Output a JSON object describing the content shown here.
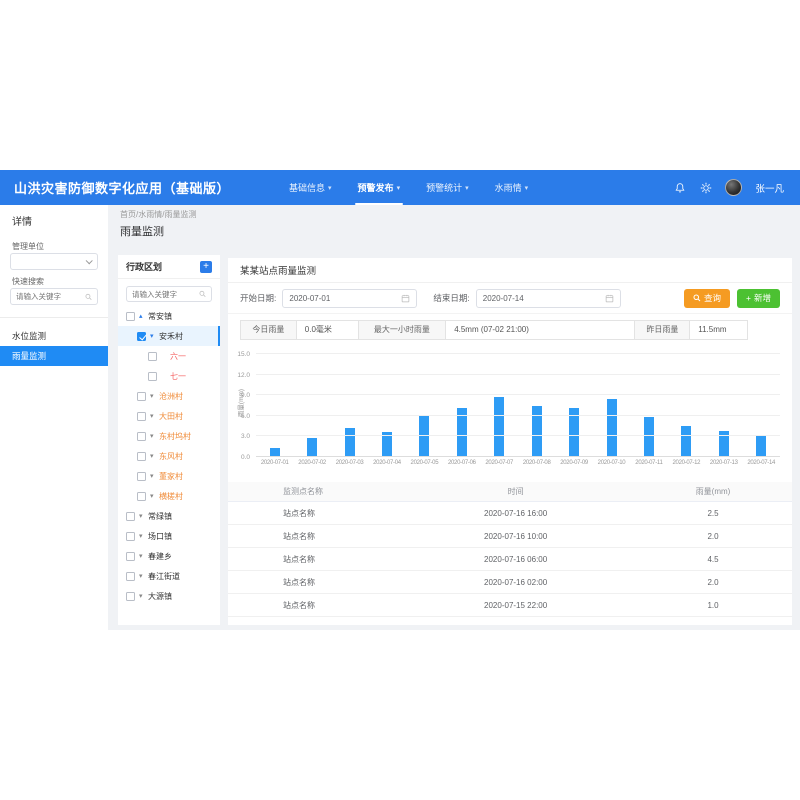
{
  "header": {
    "app_title": "山洪灾害防御数字化应用（基础版）",
    "nav": [
      {
        "label": "基础信息",
        "active": false
      },
      {
        "label": "预警发布",
        "active": true
      },
      {
        "label": "预警统计",
        "active": false
      },
      {
        "label": "水雨情",
        "active": false
      }
    ],
    "user_name": "张一凡"
  },
  "breadcrumb": "首页/水雨情/雨量监测",
  "page_title": "雨量监测",
  "sidebar": {
    "title": "详情",
    "manage_unit_label": "管理单位",
    "quick_search_label": "快速搜索",
    "search_placeholder": "请输入关键字",
    "items": [
      {
        "label": "水位监测",
        "active": false
      },
      {
        "label": "雨量监测",
        "active": true
      }
    ]
  },
  "tree": {
    "title": "行政区划",
    "search_placeholder": "请输入关键字",
    "nodes": [
      {
        "label": "常安镇",
        "level": 0,
        "checked": false,
        "selected": false,
        "caret": "up",
        "color": "default"
      },
      {
        "label": "安禾村",
        "level": 1,
        "checked": true,
        "selected": true,
        "caret": "down",
        "color": "default"
      },
      {
        "label": "六一",
        "level": 2,
        "checked": false,
        "selected": false,
        "caret": "none",
        "color": "red"
      },
      {
        "label": "七一",
        "level": 2,
        "checked": false,
        "selected": false,
        "caret": "none",
        "color": "red"
      },
      {
        "label": "沧洲村",
        "level": 1,
        "checked": false,
        "selected": false,
        "caret": "down",
        "color": "orange"
      },
      {
        "label": "大田村",
        "level": 1,
        "checked": false,
        "selected": false,
        "caret": "down",
        "color": "orange"
      },
      {
        "label": "东村坞村",
        "level": 1,
        "checked": false,
        "selected": false,
        "caret": "down",
        "color": "orange"
      },
      {
        "label": "东风村",
        "level": 1,
        "checked": false,
        "selected": false,
        "caret": "down",
        "color": "orange"
      },
      {
        "label": "董家村",
        "level": 1,
        "checked": false,
        "selected": false,
        "caret": "down",
        "color": "orange"
      },
      {
        "label": "横槎村",
        "level": 1,
        "checked": false,
        "selected": false,
        "caret": "down",
        "color": "orange"
      },
      {
        "label": "常绿镇",
        "level": 0,
        "checked": false,
        "selected": false,
        "caret": "down",
        "color": "default"
      },
      {
        "label": "场口镇",
        "level": 0,
        "checked": false,
        "selected": false,
        "caret": "down",
        "color": "default"
      },
      {
        "label": "春建乡",
        "level": 0,
        "checked": false,
        "selected": false,
        "caret": "down",
        "color": "default"
      },
      {
        "label": "春江街道",
        "level": 0,
        "checked": false,
        "selected": false,
        "caret": "down",
        "color": "default"
      },
      {
        "label": "大源镇",
        "level": 0,
        "checked": false,
        "selected": false,
        "caret": "down",
        "color": "default"
      }
    ]
  },
  "main": {
    "card_title": "某某站点雨量监测",
    "filters": {
      "start_label": "开始日期:",
      "start_value": "2020-07-01",
      "end_label": "结束日期:",
      "end_value": "2020-07-14",
      "search_button": "查询",
      "add_button": "新增"
    },
    "stats": [
      {
        "label": "今日雨量",
        "value": "0.0毫米"
      },
      {
        "label": "最大一小时雨量",
        "value": "4.5mm (07-02 21:00)"
      },
      {
        "label": "昨日雨量",
        "value": "11.5mm"
      }
    ],
    "table": {
      "headers": [
        "监测点名称",
        "时间",
        "雨量(mm)"
      ],
      "rows": [
        [
          "站点名称",
          "2020-07-16 16:00",
          "2.5"
        ],
        [
          "站点名称",
          "2020-07-16 10:00",
          "2.0"
        ],
        [
          "站点名称",
          "2020-07-16 06:00",
          "4.5"
        ],
        [
          "站点名称",
          "2020-07-16 02:00",
          "2.0"
        ],
        [
          "站点名称",
          "2020-07-15 22:00",
          "1.0"
        ]
      ]
    }
  },
  "chart_data": {
    "type": "bar",
    "title": "某某站点雨量监测",
    "x": [
      "2020-07-01",
      "2020-07-02",
      "2020-07-03",
      "2020-07-04",
      "2020-07-05",
      "2020-07-06",
      "2020-07-07",
      "2020-07-08",
      "2020-07-09",
      "2020-07-10",
      "2020-07-11",
      "2020-07-12",
      "2020-07-13",
      "2020-07-14"
    ],
    "values": [
      1.3,
      2.8,
      4.2,
      3.6,
      6.0,
      7.2,
      8.8,
      7.5,
      7.1,
      8.5,
      5.8,
      4.5,
      3.8,
      3.0
    ],
    "xlabel": "",
    "ylabel": "雨量(mm)",
    "ylim": [
      0,
      15
    ],
    "yticks": [
      0,
      3,
      6,
      9,
      12,
      15
    ],
    "bar_color": "#2e9cf5",
    "grid": true,
    "legend": "none"
  },
  "colors": {
    "topbar_blue": "#2b7ce9",
    "accent_blue": "#1f8bf4",
    "bar_blue": "#2e9cf5",
    "orange_button": "#f59b22",
    "green_button": "#4cc132",
    "page_bg": "#f0f2f5"
  }
}
